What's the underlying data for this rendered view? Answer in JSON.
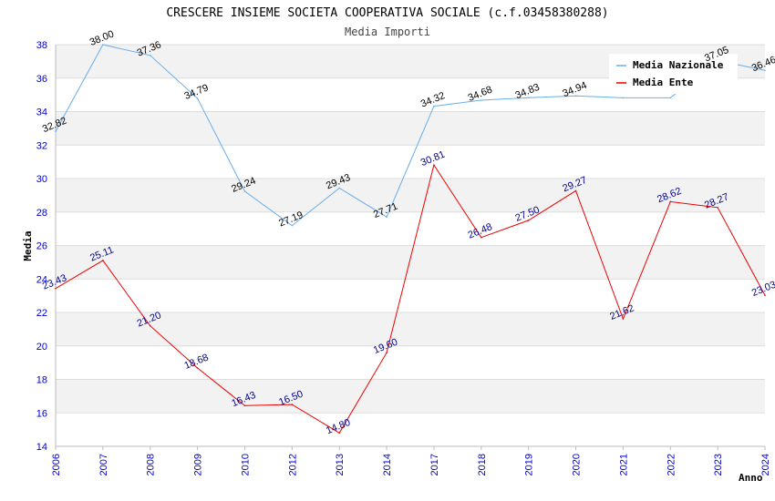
{
  "chart_data": {
    "type": "line",
    "title": "CRESCERE INSIEME SOCIETA COOPERATIVA SOCIALE (c.f.03458380288)",
    "subtitle": "Media Importi",
    "xlabel": "Anno",
    "ylabel": "Media",
    "ylim": [
      14,
      38
    ],
    "yticks": [
      14,
      16,
      18,
      20,
      22,
      24,
      26,
      28,
      30,
      32,
      34,
      36,
      38
    ],
    "categories": [
      "2006",
      "2007",
      "2008",
      "2009",
      "2010",
      "2012",
      "2013",
      "2014",
      "2017",
      "2018",
      "2019",
      "2020",
      "2021",
      "2022",
      "2023",
      "2024"
    ],
    "grid": "horizontal alternating bands",
    "legend_position": "top-right",
    "series": [
      {
        "name": "Media Nazionale",
        "color": "#6aaee8",
        "label_color": "#000000",
        "values": [
          32.82,
          38.0,
          37.36,
          34.79,
          29.24,
          27.19,
          29.43,
          27.71,
          34.32,
          34.68,
          34.83,
          34.94,
          34.82,
          34.82,
          37.05,
          36.46
        ],
        "labels": [
          "32.82",
          "38.00",
          "37.36",
          "34.79",
          "29.24",
          "27.19",
          "29.43",
          "27.71",
          "34.32",
          "34.68",
          "34.83",
          "34.94",
          "",
          "",
          "37.05",
          "36.46"
        ]
      },
      {
        "name": "Media Ente",
        "color": "#ee0000",
        "label_color": "#00008b",
        "values": [
          23.43,
          25.11,
          21.2,
          18.68,
          16.43,
          16.5,
          14.8,
          19.6,
          30.81,
          26.48,
          27.5,
          29.27,
          21.62,
          28.62,
          28.27,
          23.03
        ],
        "labels": [
          "23.43",
          "25.11",
          "21.20",
          "18.68",
          "16.43",
          "16.50",
          "14.80",
          "19.60",
          "30.81",
          "26.48",
          "27.50",
          "29.27",
          "21.62",
          "28.62",
          "28.27",
          "23.03"
        ]
      }
    ]
  },
  "colors": {
    "tick_label": "#0000cc",
    "band": "#f2f2f2",
    "grid_line": "#dddddd",
    "axis": "#bbbbbb"
  }
}
